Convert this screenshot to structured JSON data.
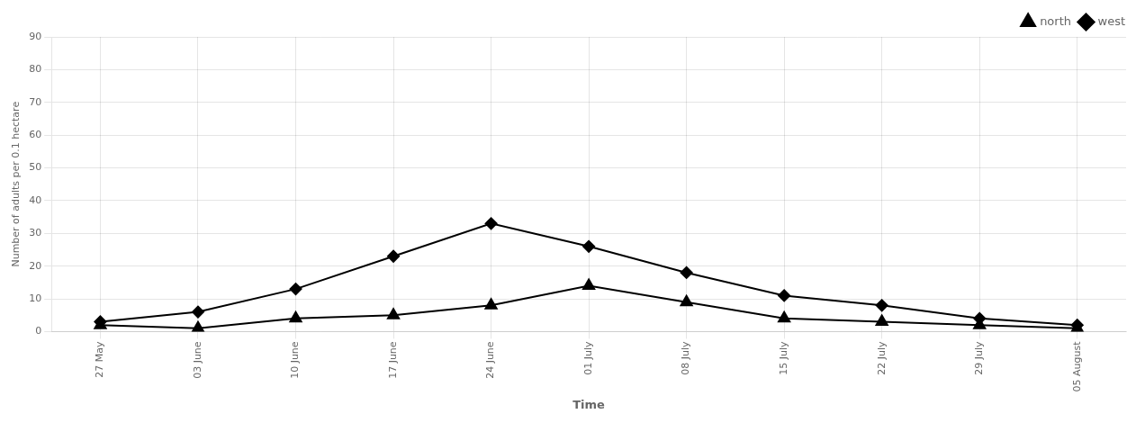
{
  "chart_data": {
    "type": "line",
    "xlabel": "Time",
    "ylabel": "Number of adults per 0.1 hectare",
    "categories": [
      "27 May",
      "03 June",
      "10 June",
      "17 June",
      "24 June",
      "01 July",
      "08 July",
      "15 July",
      "22 July",
      "29 July",
      "05 August"
    ],
    "series": [
      {
        "name": "north",
        "color": "#000000",
        "marker": "triangle",
        "values": [
          2,
          1,
          4,
          5,
          8,
          14,
          9,
          4,
          3,
          2,
          1
        ]
      },
      {
        "name": "west",
        "color": "#000000",
        "marker": "diamond",
        "values": [
          3,
          6,
          13,
          23,
          33,
          26,
          18,
          11,
          8,
          4,
          2
        ]
      }
    ],
    "ylim": [
      0,
      90
    ],
    "yticks": [
      0,
      10,
      20,
      30,
      40,
      50,
      60,
      70,
      80,
      90
    ],
    "grid": true,
    "legend": "upper right"
  }
}
